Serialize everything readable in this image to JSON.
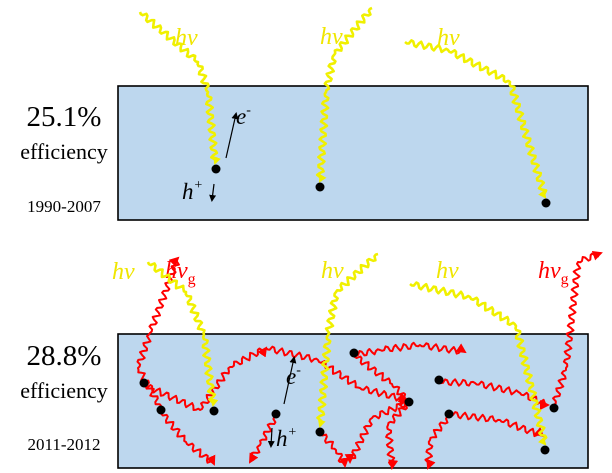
{
  "panels": {
    "top": {
      "efficiency": "25.1%",
      "efficiency_word": "efficiency",
      "years": "1990-2007",
      "photon_label": "hν",
      "electron_label": "e",
      "electron_charge": "-",
      "hole_label": "h",
      "hole_charge": "+"
    },
    "bottom": {
      "efficiency": "28.8%",
      "efficiency_word": "efficiency",
      "years": "2011-2012",
      "photon_label": "hν",
      "emitted_label": "hν",
      "emitted_subscript": "g",
      "electron_label": "e",
      "electron_charge": "-",
      "hole_label": "h",
      "hole_charge": "+"
    }
  },
  "colors": {
    "cell_fill": "#bdd7ee",
    "cell_border": "#000000",
    "incident_photon": "#f0f000",
    "emitted_photon": "#ff0000",
    "carrier": "#000000"
  }
}
